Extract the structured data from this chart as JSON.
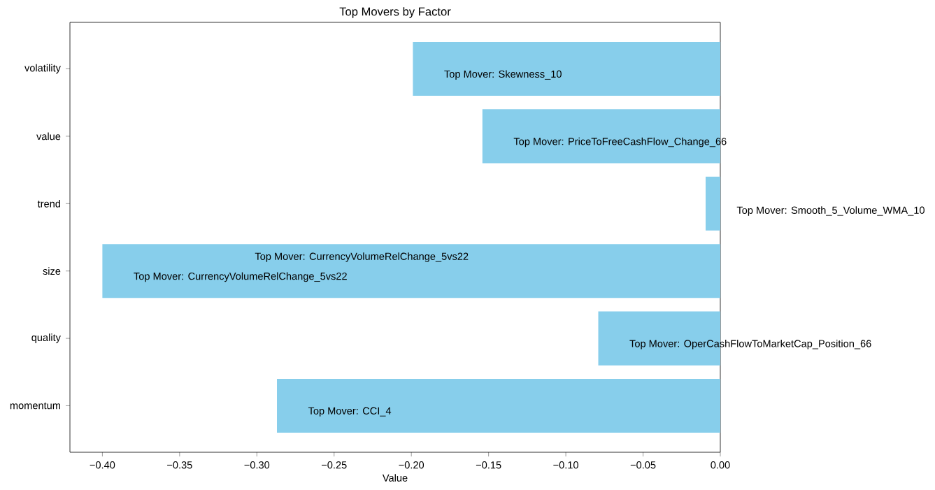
{
  "chart_data": {
    "type": "bar",
    "orientation": "horizontal",
    "title": "Top Movers by Factor",
    "xlabel": "Value",
    "categories": [
      "volatility",
      "value",
      "trend",
      "size",
      "quality",
      "momentum"
    ],
    "values": [
      -0.199,
      -0.154,
      -0.0095,
      -0.4,
      -0.079,
      -0.287
    ],
    "color": "#87ceeb",
    "xlim": [
      -0.421,
      0
    ],
    "xticks": [
      {
        "value": -0.4,
        "label": "−0.40"
      },
      {
        "value": -0.35,
        "label": "−0.35"
      },
      {
        "value": -0.3,
        "label": "−0.30"
      },
      {
        "value": -0.25,
        "label": "−0.25"
      },
      {
        "value": -0.2,
        "label": "−0.20"
      },
      {
        "value": -0.15,
        "label": "−0.15"
      },
      {
        "value": -0.1,
        "label": "−0.10"
      },
      {
        "value": -0.05,
        "label": "−0.05"
      },
      {
        "value": 0,
        "label": "0.00"
      }
    ],
    "annotations": [
      {
        "text": "Top Mover: Skewness_10",
        "x": -0.179,
        "y": "volatility"
      },
      {
        "text": "Top Mover: PriceToFreeCashFlow_Change_66",
        "x": -0.134,
        "y": "value"
      },
      "Top Mover: Smooth_5_Volume_WMA_10",
      "Top Mover: CurrencyVolumeRelChange_5vs22",
      {
        "text": "Top Mover: CurrencyVolumeRelChange_5vs22",
        "x": -0.38,
        "y": "size"
      },
      {
        "text": "Top Mover: OperCashFlowToMarketCap_Position_66",
        "x": -0.059,
        "y": "quality"
      },
      {
        "text": "Top Mover: CCI_4",
        "x": -0.267,
        "y": "momentum"
      }
    ]
  }
}
